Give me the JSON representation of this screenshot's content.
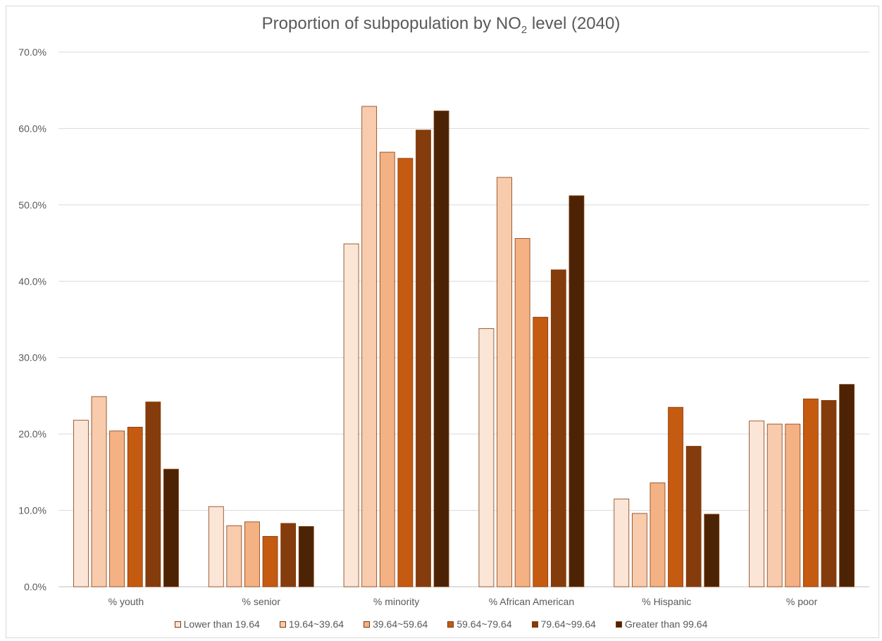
{
  "chart_data": {
    "type": "bar",
    "title": "Proportion of subpopulation by NO",
    "title_subscript": "2",
    "title_suffix": " level (2040)",
    "xlabel": "",
    "ylabel": "",
    "ylim": [
      0,
      70
    ],
    "yticks": [
      "0.0%",
      "10.0%",
      "20.0%",
      "30.0%",
      "40.0%",
      "50.0%",
      "60.0%",
      "70.0%"
    ],
    "grid": true,
    "legend_position": "bottom",
    "categories": [
      "% youth",
      "% senior",
      "% minority",
      "% African American",
      "% Hispanic",
      "% poor"
    ],
    "series": [
      {
        "name": "Lower than 19.64",
        "color": "#fbe5d6",
        "values": [
          21.8,
          10.5,
          44.9,
          33.8,
          11.5,
          21.7
        ]
      },
      {
        "name": "19.64~39.64",
        "color": "#f8cbad",
        "values": [
          24.9,
          8.0,
          62.9,
          53.6,
          9.6,
          21.3
        ]
      },
      {
        "name": "39.64~59.64",
        "color": "#f4b183",
        "values": [
          20.4,
          8.5,
          56.9,
          45.6,
          13.6,
          21.3
        ]
      },
      {
        "name": "59.64~79.64",
        "color": "#c55a11",
        "values": [
          20.9,
          6.6,
          56.1,
          35.3,
          23.5,
          24.6
        ]
      },
      {
        "name": "79.64~99.64",
        "color": "#843c0c",
        "values": [
          24.2,
          8.3,
          59.8,
          41.5,
          18.4,
          24.4
        ]
      },
      {
        "name": "Greater than 99.64",
        "color": "#4d2305",
        "values": [
          15.4,
          7.9,
          62.3,
          51.2,
          9.5,
          26.5
        ]
      }
    ]
  }
}
